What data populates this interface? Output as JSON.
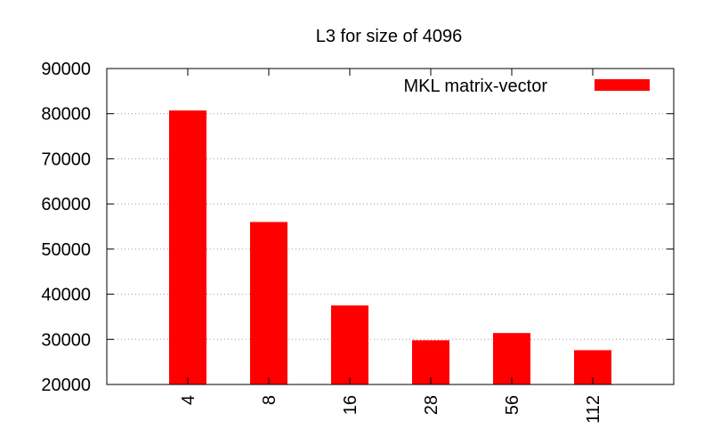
{
  "chart_data": {
    "type": "bar",
    "title": "L3 for size of 4096",
    "xlabel": "",
    "ylabel": "",
    "categories": [
      "4",
      "8",
      "16",
      "28",
      "56",
      "112"
    ],
    "series": [
      {
        "name": "MKL matrix-vector",
        "color": "#ff0000",
        "values": [
          80700,
          56000,
          37500,
          29800,
          31400,
          27600
        ]
      }
    ],
    "ylim": [
      20000,
      90000
    ],
    "yticks": [
      "20000",
      "30000",
      "40000",
      "50000",
      "60000",
      "70000",
      "80000",
      "90000"
    ],
    "grid": "horizontal dotted",
    "legend_position": "top-right"
  }
}
